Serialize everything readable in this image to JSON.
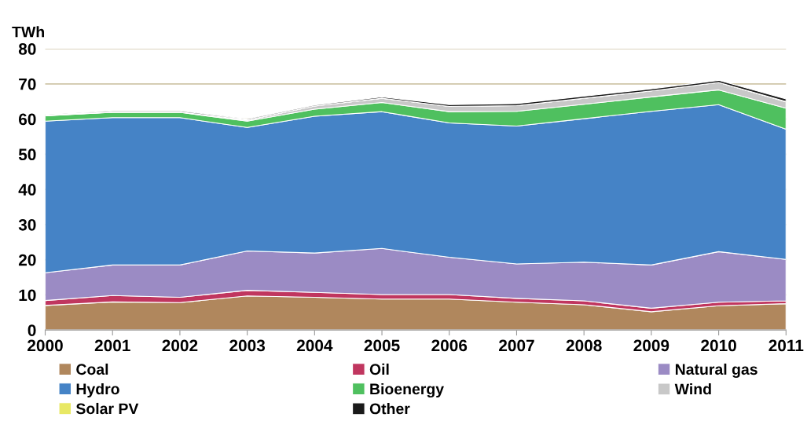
{
  "chart_data": {
    "type": "area",
    "stacked": true,
    "ylabel": "TWh",
    "x": [
      2000,
      2001,
      2002,
      2003,
      2004,
      2005,
      2006,
      2007,
      2008,
      2009,
      2010,
      2011
    ],
    "xlim": [
      2000,
      2011
    ],
    "xticks": [
      2000,
      2001,
      2002,
      2003,
      2004,
      2005,
      2006,
      2007,
      2008,
      2009,
      2010,
      2011
    ],
    "ylim": [
      0,
      80
    ],
    "yticks": [
      0,
      10,
      20,
      30,
      40,
      50,
      60,
      70,
      80
    ],
    "grid": "y",
    "legend": "bottom",
    "series": [
      {
        "name": "Coal",
        "color": "#b0875d",
        "values": [
          7.0,
          8.0,
          7.8,
          9.7,
          9.3,
          8.8,
          8.8,
          7.9,
          7.2,
          5.2,
          6.9,
          7.5
        ]
      },
      {
        "name": "Oil",
        "color": "#c0365f",
        "values": [
          1.4,
          1.8,
          1.5,
          1.6,
          1.4,
          1.3,
          1.3,
          1.1,
          1.1,
          1.0,
          1.0,
          0.8
        ]
      },
      {
        "name": "Natural gas",
        "color": "#9b8bc4",
        "values": [
          7.9,
          8.7,
          9.2,
          11.2,
          11.2,
          13.1,
          10.6,
          9.8,
          11.0,
          12.3,
          14.4,
          11.8
        ]
      },
      {
        "name": "Hydro",
        "color": "#4583c6",
        "values": [
          43.1,
          41.9,
          41.9,
          35.1,
          38.9,
          38.9,
          38.2,
          39.2,
          40.8,
          43.7,
          41.8,
          37.0
        ]
      },
      {
        "name": "Bioenergy",
        "color": "#4fc05f",
        "values": [
          1.5,
          1.5,
          1.5,
          1.8,
          2.0,
          2.6,
          3.2,
          4.2,
          4.1,
          4.1,
          4.2,
          6.0
        ]
      },
      {
        "name": "Wind",
        "color": "#c8c8c8",
        "values": [
          0.1,
          0.1,
          0.1,
          0.3,
          0.9,
          1.2,
          1.5,
          1.6,
          1.7,
          1.7,
          2.1,
          1.8
        ]
      },
      {
        "name": "Solar PV",
        "color": "#e8e864",
        "values": [
          0,
          0,
          0,
          0,
          0,
          0,
          0,
          0,
          0,
          0,
          0,
          0.1
        ]
      },
      {
        "name": "Other",
        "color": "#1a1a1a",
        "values": [
          0.2,
          0.3,
          0.3,
          0.3,
          0.3,
          0.4,
          0.5,
          0.6,
          0.6,
          0.6,
          0.6,
          0.7
        ]
      }
    ]
  }
}
